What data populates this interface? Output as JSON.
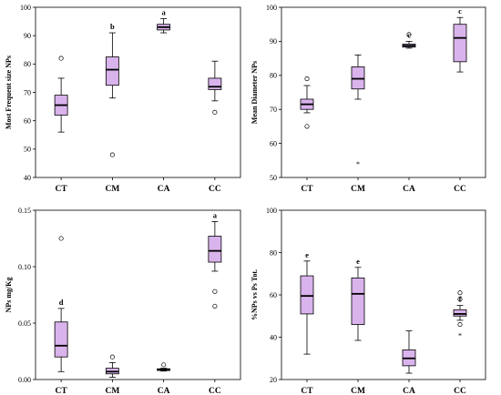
{
  "colors": {
    "box_fill": "#d9b3ec",
    "stroke": "#000000",
    "median": "#000000"
  },
  "chart_data": [
    {
      "type": "box",
      "panel": "top-left",
      "categories": [
        "CT",
        "CM",
        "CA",
        "CC"
      ],
      "ylabel": "Most Frequent size NPs",
      "ylim": [
        40,
        100
      ],
      "yticks": [
        40,
        50,
        60,
        70,
        80,
        90,
        100
      ],
      "ytick_labels": [
        "40",
        "50",
        "60",
        "70",
        "80",
        "90",
        "100"
      ],
      "boxes": [
        {
          "category": "CT",
          "whisker_low": 56,
          "q1": 62,
          "median": 65.5,
          "q3": 69,
          "whisker_high": 75,
          "outliers": [
            82
          ],
          "extremes": [],
          "letter": ""
        },
        {
          "category": "CM",
          "whisker_low": 68,
          "q1": 72.5,
          "median": 78,
          "q3": 82.5,
          "whisker_high": 91,
          "outliers": [
            48
          ],
          "extremes": [],
          "letter": "b"
        },
        {
          "category": "CA",
          "whisker_low": 91,
          "q1": 92,
          "median": 93,
          "q3": 94,
          "whisker_high": 96,
          "outliers": [],
          "extremes": [],
          "letter": "a"
        },
        {
          "category": "CC",
          "whisker_low": 67,
          "q1": 71,
          "median": 72,
          "q3": 75,
          "whisker_high": 81,
          "outliers": [
            63
          ],
          "extremes": [],
          "letter": ""
        }
      ]
    },
    {
      "type": "box",
      "panel": "top-right",
      "categories": [
        "CT",
        "CM",
        "CA",
        "CC"
      ],
      "ylabel": "Mean Diameter NPs",
      "ylim": [
        50,
        100
      ],
      "yticks": [
        50,
        60,
        70,
        80,
        90,
        100
      ],
      "ytick_labels": [
        "50",
        "60",
        "70",
        "80",
        "90",
        "100"
      ],
      "boxes": [
        {
          "category": "CT",
          "whisker_low": 69,
          "q1": 70,
          "median": 71.5,
          "q3": 73,
          "whisker_high": 77,
          "outliers": [
            65,
            79
          ],
          "extremes": [],
          "letter": ""
        },
        {
          "category": "CM",
          "whisker_low": 73,
          "q1": 76,
          "median": 79,
          "q3": 82.5,
          "whisker_high": 86,
          "outliers": [],
          "extremes": [
            54
          ],
          "letter": ""
        },
        {
          "category": "CA",
          "whisker_low": 88,
          "q1": 88.3,
          "median": 88.7,
          "q3": 89.2,
          "whisker_high": 90,
          "outliers": [
            92
          ],
          "extremes": [],
          "letter": "c"
        },
        {
          "category": "CC",
          "whisker_low": 81,
          "q1": 84,
          "median": 91,
          "q3": 95,
          "whisker_high": 97,
          "outliers": [],
          "extremes": [],
          "letter": "c"
        }
      ]
    },
    {
      "type": "box",
      "panel": "bottom-left",
      "categories": [
        "CT",
        "CM",
        "CA",
        "CC"
      ],
      "ylabel": "NPs mg/Kg",
      "ylim": [
        0,
        0.15
      ],
      "yticks": [
        0,
        0.05,
        0.1,
        0.15
      ],
      "ytick_labels": [
        "0.00",
        "0.05",
        "0.10",
        "0.15"
      ],
      "boxes": [
        {
          "category": "CT",
          "whisker_low": 0.007,
          "q1": 0.02,
          "median": 0.03,
          "q3": 0.051,
          "whisker_high": 0.063,
          "outliers": [
            0.125
          ],
          "extremes": [],
          "letter": "d"
        },
        {
          "category": "CM",
          "whisker_low": 0.002,
          "q1": 0.005,
          "median": 0.007,
          "q3": 0.01,
          "whisker_high": 0.015,
          "outliers": [
            0.02
          ],
          "extremes": [],
          "letter": ""
        },
        {
          "category": "CA",
          "whisker_low": 0.0075,
          "q1": 0.008,
          "median": 0.009,
          "q3": 0.0095,
          "whisker_high": 0.01,
          "outliers": [
            0.013
          ],
          "extremes": [],
          "letter": ""
        },
        {
          "category": "CC",
          "whisker_low": 0.096,
          "q1": 0.104,
          "median": 0.114,
          "q3": 0.127,
          "whisker_high": 0.14,
          "outliers": [
            0.078,
            0.065
          ],
          "extremes": [],
          "letter": "a"
        }
      ]
    },
    {
      "type": "box",
      "panel": "bottom-right",
      "categories": [
        "CT",
        "CM",
        "CA",
        "CC"
      ],
      "ylabel": "%NPs vs Ps Tot.",
      "ylim": [
        20,
        100
      ],
      "yticks": [
        20,
        40,
        60,
        80,
        100
      ],
      "ytick_labels": [
        "20",
        "40",
        "60",
        "80",
        "100"
      ],
      "boxes": [
        {
          "category": "CT",
          "whisker_low": 32,
          "q1": 51,
          "median": 59.5,
          "q3": 69,
          "whisker_high": 76,
          "outliers": [],
          "extremes": [],
          "letter": "e"
        },
        {
          "category": "CM",
          "whisker_low": 38.5,
          "q1": 46,
          "median": 60.5,
          "q3": 68,
          "whisker_high": 73,
          "outliers": [],
          "extremes": [],
          "letter": "e"
        },
        {
          "category": "CA",
          "whisker_low": 23,
          "q1": 26.5,
          "median": 30,
          "q3": 34,
          "whisker_high": 43,
          "outliers": [],
          "extremes": [],
          "letter": ""
        },
        {
          "category": "CC",
          "whisker_low": 48,
          "q1": 50,
          "median": 51,
          "q3": 53,
          "whisker_high": 55,
          "outliers": [
            61,
            58,
            46
          ],
          "extremes": [
            41
          ],
          "letter": "f"
        }
      ]
    }
  ]
}
